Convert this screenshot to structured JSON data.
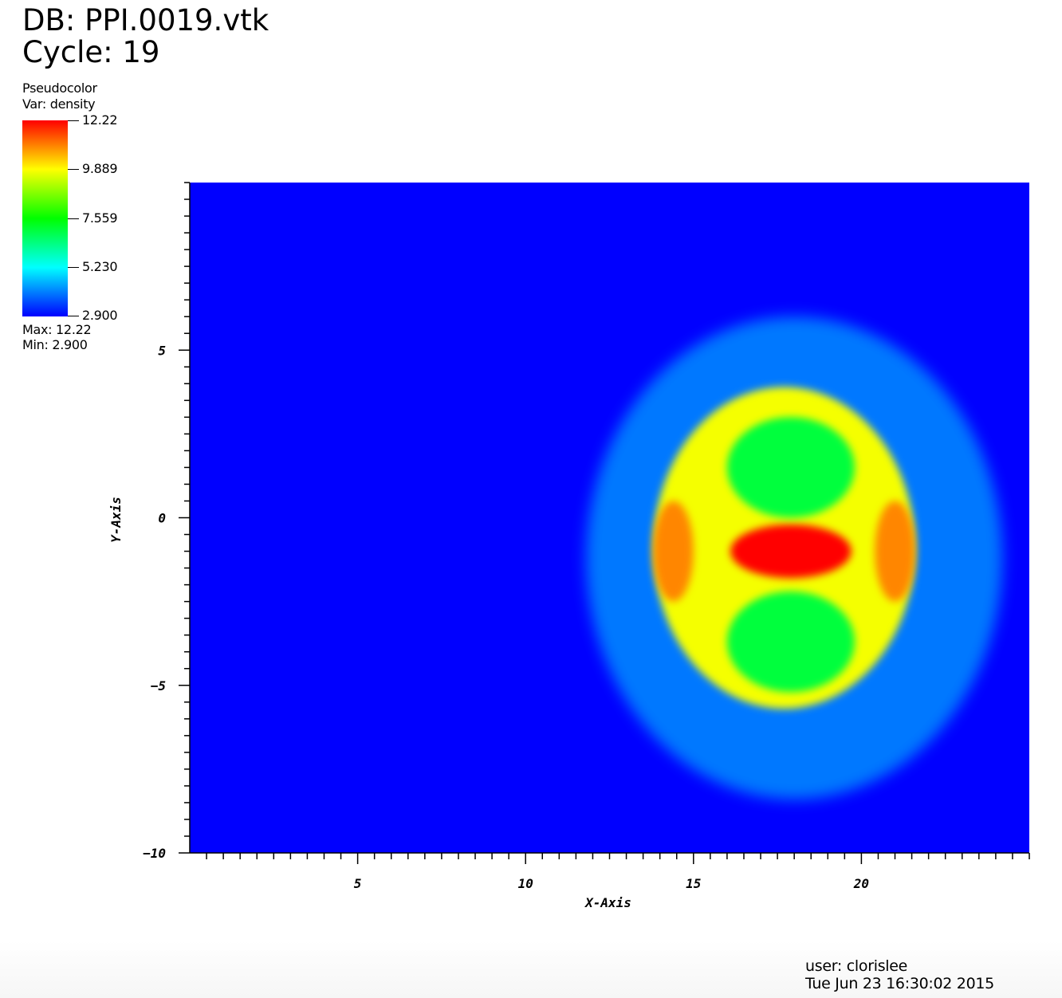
{
  "header": {
    "db_label": "DB: PPI.0019.vtk",
    "cycle_label": "Cycle: 19"
  },
  "legend": {
    "plot_type": "Pseudocolor",
    "var_label": "Var: density",
    "ticks": [
      "12.22",
      "9.889",
      "7.559",
      "5.230",
      "2.900"
    ],
    "max_label": "Max:  12.22",
    "min_label": "Min:  2.900",
    "colors": [
      "#ff0000",
      "#ffff00",
      "#00ff00",
      "#00ffff",
      "#0000ff"
    ]
  },
  "footer": {
    "user": "user: clorislee",
    "timestamp": "Tue Jun 23 16:30:02 2015"
  },
  "chart_data": {
    "type": "heatmap",
    "title": "",
    "xlabel": "X-Axis",
    "ylabel": "Y-Axis",
    "xlim": [
      0,
      25
    ],
    "ylim": [
      -10,
      10
    ],
    "x_ticks": [
      5,
      10,
      15,
      20
    ],
    "y_ticks": [
      5,
      0,
      -5,
      -10
    ],
    "x_tick_labels": [
      "5",
      "10",
      "15",
      "20"
    ],
    "y_tick_labels": [
      "5",
      "0",
      "−5",
      "−10"
    ],
    "variable": "density",
    "value_range": [
      2.9,
      12.22
    ],
    "background_value": 2.9,
    "colormap": [
      "#0000ff",
      "#00ffff",
      "#00ff00",
      "#ffff00",
      "#ff0000"
    ],
    "features": [
      {
        "name": "outer ring",
        "center": [
          18,
          -1.2
        ],
        "radii": [
          6.2,
          7.2
        ],
        "value": 4.0
      },
      {
        "name": "inner blob",
        "center": [
          17.7,
          -0.9
        ],
        "radii": [
          3.9,
          4.8
        ],
        "value": 9.8
      },
      {
        "name": "central core",
        "center": [
          17.9,
          -1.0
        ],
        "radii": [
          1.8,
          0.8
        ],
        "value": 12.22
      },
      {
        "name": "upper lobe",
        "center": [
          17.9,
          1.5
        ],
        "radii": [
          1.9,
          1.5
        ],
        "value": 7.0
      },
      {
        "name": "lower lobe",
        "center": [
          17.9,
          -3.7
        ],
        "radii": [
          1.9,
          1.5
        ],
        "value": 7.0
      },
      {
        "name": "left rim",
        "center": [
          14.4,
          -1.0
        ],
        "radii": [
          0.6,
          1.5
        ],
        "value": 11.0
      },
      {
        "name": "right rim",
        "center": [
          21.0,
          -1.0
        ],
        "radii": [
          0.6,
          1.5
        ],
        "value": 11.0
      }
    ]
  }
}
